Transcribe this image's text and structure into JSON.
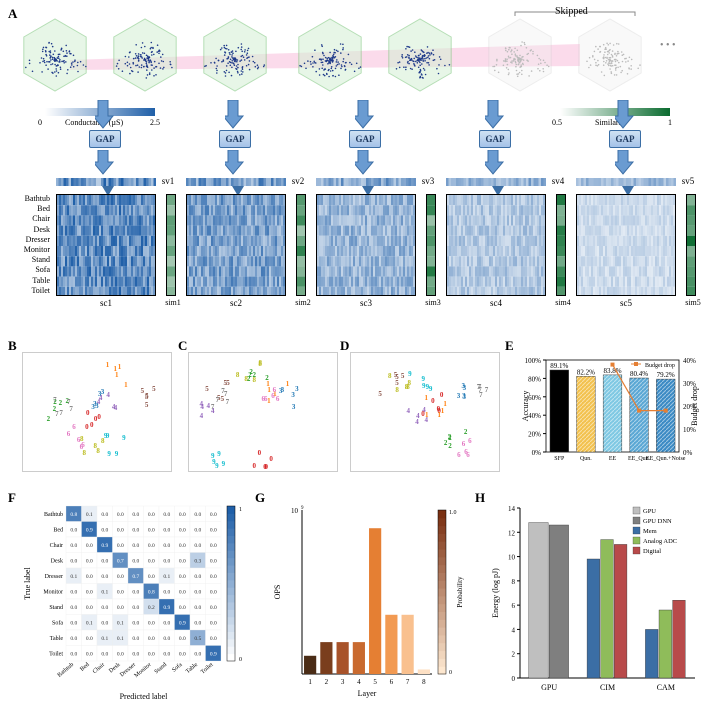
{
  "panels": {
    "A": "A",
    "B": "B",
    "C": "C",
    "D": "D",
    "E": "E",
    "F": "F",
    "G": "G",
    "H": "H"
  },
  "topRow": {
    "skipped": "Skipped",
    "dots": "• • •",
    "gap": "GAP",
    "svLabels": [
      "sv1",
      "sv2",
      "sv3",
      "sv4",
      "sv5"
    ],
    "scLabels": [
      "sc1",
      "sc2",
      "sc3",
      "sc4",
      "sc5"
    ],
    "simLabels": [
      "sim1",
      "sim2",
      "sim3",
      "sim4",
      "sim5"
    ],
    "rowLabels": [
      "Bathtub",
      "Bed",
      "Chair",
      "Desk",
      "Dresser",
      "Monitor",
      "Stand",
      "Sofa",
      "Table",
      "Toilet"
    ]
  },
  "colorbars": {
    "cond": {
      "min": 0,
      "max": 2.5,
      "label": "Conductance",
      "unit": "(µS)",
      "gradient": [
        "#ffffff",
        "#1f5fa8"
      ]
    },
    "simm": {
      "min": 0.5,
      "max": 1.0,
      "label": "Similarity",
      "gradient": [
        "#ffffff",
        "#0a6b2f"
      ]
    }
  },
  "scatterColors": [
    "#d62728",
    "#ff7f0e",
    "#2ca02c",
    "#1f77b4",
    "#9467bd",
    "#8c564b",
    "#e377c2",
    "#7f7f7f",
    "#bcbd22",
    "#17becf"
  ],
  "E": {
    "ylabel_left": "Accuracy",
    "ylabel_right": "Budget drop",
    "legend": "Budget drop",
    "categories": [
      "SFP",
      "Qun.",
      "EE",
      "EE_Qun.",
      "EE_Qun.+Noise"
    ],
    "values": [
      89.1,
      82.2,
      83.8,
      80.4,
      79.2
    ],
    "valueLabels": [
      "89.1%",
      "82.2%",
      "83.8%",
      "80.4%",
      "79.2%"
    ],
    "budget_drop": [
      0,
      0,
      38,
      18,
      18
    ],
    "barColors": [
      "#000000",
      "#f2c14e",
      "#7ec8e3",
      "#5aa7d4",
      "#3b8ac4"
    ],
    "ylim_left": [
      0,
      100
    ],
    "ytick_left": 20,
    "ylim_right": [
      0,
      40
    ]
  },
  "F": {
    "xlabel": "Predicted label",
    "ylabel": "True label",
    "labels": [
      "Bathtub",
      "Bed",
      "Chair",
      "Desk",
      "Dresser",
      "Monitor",
      "Stand",
      "Sofa",
      "Table",
      "Toilet"
    ],
    "matrix": [
      [
        0.8,
        0.1,
        0.0,
        0.0,
        0.0,
        0.0,
        0.0,
        0.0,
        0.0,
        0.0
      ],
      [
        0.0,
        0.9,
        0.0,
        0.0,
        0.0,
        0.0,
        0.0,
        0.0,
        0.0,
        0.0
      ],
      [
        0.0,
        0.0,
        0.9,
        0.0,
        0.0,
        0.0,
        0.0,
        0.0,
        0.0,
        0.0
      ],
      [
        0.0,
        0.0,
        0.0,
        0.7,
        0.0,
        0.0,
        0.0,
        0.0,
        0.3,
        0.0
      ],
      [
        0.1,
        0.0,
        0.0,
        0.0,
        0.7,
        0.0,
        0.1,
        0.0,
        0.0,
        0.0
      ],
      [
        0.0,
        0.0,
        0.1,
        0.0,
        0.0,
        0.8,
        0.0,
        0.0,
        0.0,
        0.0
      ],
      [
        0.0,
        0.0,
        0.0,
        0.0,
        0.0,
        0.2,
        0.9,
        0.0,
        0.0,
        0.0
      ],
      [
        0.0,
        0.1,
        0.0,
        0.1,
        0.0,
        0.0,
        0.0,
        0.9,
        0.0,
        0.0
      ],
      [
        0.0,
        0.0,
        0.1,
        0.1,
        0.0,
        0.0,
        0.0,
        0.0,
        0.5,
        0.0
      ],
      [
        0.0,
        0.0,
        0.0,
        0.0,
        0.0,
        0.0,
        0.0,
        0.0,
        0.0,
        0.9
      ]
    ],
    "cmap": [
      "#ffffff",
      "#1f5fa8"
    ],
    "cbar_ticks": [
      0,
      1
    ]
  },
  "G": {
    "xlabel": "Layer",
    "ylabel": "OPS",
    "layers": [
      1,
      2,
      3,
      4,
      5,
      6,
      7,
      8
    ],
    "ops": [
      0.2,
      0.35,
      0.35,
      0.35,
      1.6,
      0.65,
      0.65,
      0.05
    ],
    "yexp": "10",
    "yexp_sup": "9",
    "colors": [
      "#4a2c16",
      "#7a3e1d",
      "#a8532a",
      "#c96a2f",
      "#e57f33",
      "#f29a52",
      "#f9c08e",
      "#fde0c4"
    ],
    "cbar_label": "Probability",
    "cbar_ticks": [
      0,
      1.0
    ],
    "cbar_gradient": [
      "#fde7cf",
      "#7a3012"
    ]
  },
  "H": {
    "ylabel": "Energy (log pJ)",
    "groups": [
      "GPU",
      "CIM",
      "CAM"
    ],
    "legend": [
      "GPU",
      "GPU DNN",
      "Mem",
      "Analog ADC",
      "Digital"
    ],
    "legendColors": [
      "#bfbfbf",
      "#7f7f7f",
      "#3b6ea5",
      "#8fbc5a",
      "#b84a4a"
    ],
    "values": {
      "GPU": [
        12.8,
        12.6,
        null,
        null,
        null
      ],
      "CIM": [
        null,
        null,
        9.8,
        11.4,
        11.0
      ],
      "CAM": [
        null,
        null,
        4.0,
        5.6,
        6.4
      ]
    },
    "ylim": [
      0,
      14
    ],
    "ytick": 2
  }
}
